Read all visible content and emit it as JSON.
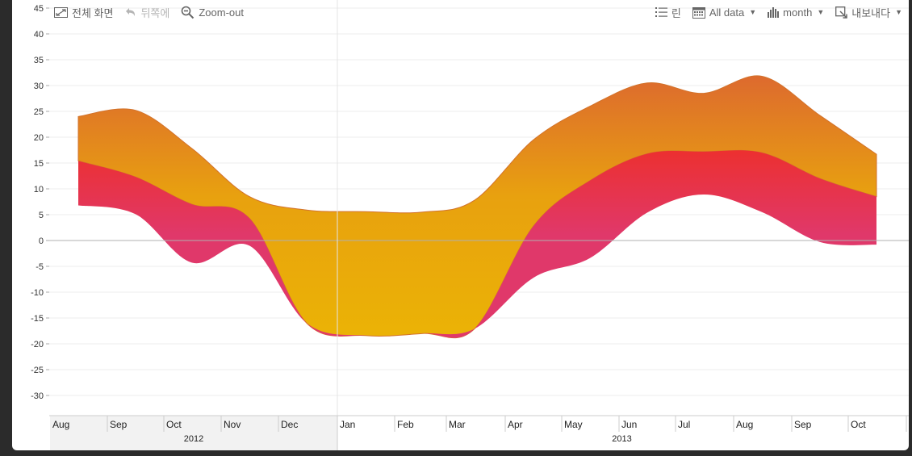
{
  "toolbar": {
    "fullscreen_label": "전체 화면",
    "back_label": "뒤쪽에",
    "zoomout_label": "Zoom-out",
    "legend_label": "린",
    "range_label": "All data",
    "period_label": "month",
    "export_label": "내보내다"
  },
  "colors": {
    "top_band": "#dd6a2e",
    "mid_band": "#e8a10f",
    "red_band": "#ec3030",
    "pink_band": "#e0386a",
    "yellow_band": "#ebb305",
    "outline": "#d2722b",
    "shaded_region": "#f2f2f2"
  },
  "chart_data": {
    "type": "area",
    "title": "",
    "x_months": [
      "Aug",
      "Sep",
      "Oct",
      "Nov",
      "Dec",
      "Jan",
      "Feb",
      "Mar",
      "Apr",
      "May",
      "Jun",
      "Jul",
      "Aug",
      "Sep",
      "Oct"
    ],
    "x_month_dates": [
      "2012-08",
      "2012-09",
      "2012-10",
      "2012-11",
      "2012-12",
      "2013-01",
      "2013-02",
      "2013-03",
      "2013-04",
      "2013-05",
      "2013-06",
      "2013-07",
      "2013-08",
      "2013-09",
      "2013-10"
    ],
    "x_years": [
      {
        "label": "2012",
        "from": "2012-08",
        "to": "2012-12"
      },
      {
        "label": "2013",
        "from": "2013-01",
        "to": "2013-10"
      }
    ],
    "ylim": [
      -33,
      45
    ],
    "yticks": [
      45,
      40,
      35,
      30,
      25,
      20,
      15,
      10,
      5,
      0,
      -5,
      -10,
      -15,
      -20,
      -25,
      -30
    ],
    "series": [
      {
        "key": "upper",
        "values": [
          24,
          25.2,
          17.8,
          8.5,
          5.9,
          5.6,
          5.5,
          7.8,
          19.5,
          26,
          30.5,
          28.5,
          31.8,
          24.2,
          16.7
        ]
      },
      {
        "key": "middle",
        "values": [
          15.4,
          12.3,
          7,
          4.3,
          -16,
          -18.4,
          -18,
          -17.1,
          2.8,
          11.6,
          16.8,
          17.2,
          17,
          12,
          8.5
        ]
      },
      {
        "key": "lower",
        "values": [
          6.8,
          5.1,
          -4.3,
          -1,
          -16,
          -18.4,
          -18,
          -17.1,
          -7.2,
          -3.4,
          5.4,
          8.9,
          5.5,
          -0.3,
          -0.8
        ]
      }
    ]
  }
}
